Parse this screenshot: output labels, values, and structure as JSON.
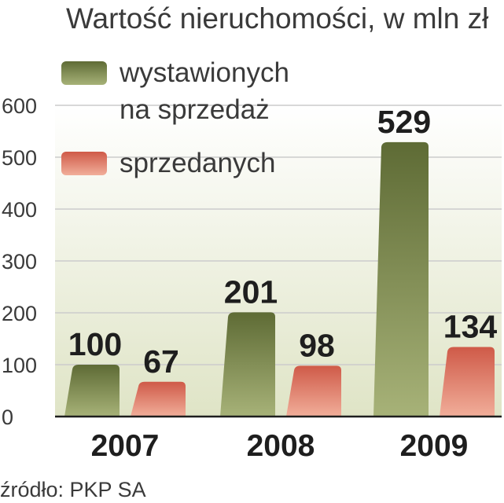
{
  "colors": {
    "offered_top": "#5e6b35",
    "offered_bottom": "#a7b278",
    "sold_top": "#cf5a48",
    "sold_bottom": "#f1ae9a",
    "highlight": "#c8143c",
    "grid": "#cccccc",
    "plot_bg_top": "#ffffff",
    "plot_bg_bottom": "#dfe4c6"
  },
  "chart_data": {
    "type": "bar",
    "title": "Wartość nieruchomości, w mln zł",
    "categories": [
      "2007",
      "2008",
      "2009"
    ],
    "series": [
      {
        "name": "wystawionych na sprzedaż",
        "name_lines": [
          "wystawionych",
          "na sprzedaż"
        ],
        "values": [
          100,
          201,
          529
        ]
      },
      {
        "name": "sprzedanych",
        "name_lines": [
          "sprzedanych"
        ],
        "values": [
          67,
          98,
          134
        ]
      }
    ],
    "data_labels": [
      [
        "100",
        "201",
        "529"
      ],
      [
        "67",
        "98",
        "134"
      ]
    ],
    "highlighted_label": {
      "series": 0,
      "index": 2
    },
    "ylim": [
      0,
      600
    ],
    "yticks": [
      "0",
      "100",
      "200",
      "300",
      "400",
      "500",
      "600"
    ],
    "ytick_values": [
      0,
      100,
      200,
      300,
      400,
      500,
      600
    ],
    "grid": true,
    "legend_position": "top-left"
  },
  "source": "źródło: PKP SA"
}
